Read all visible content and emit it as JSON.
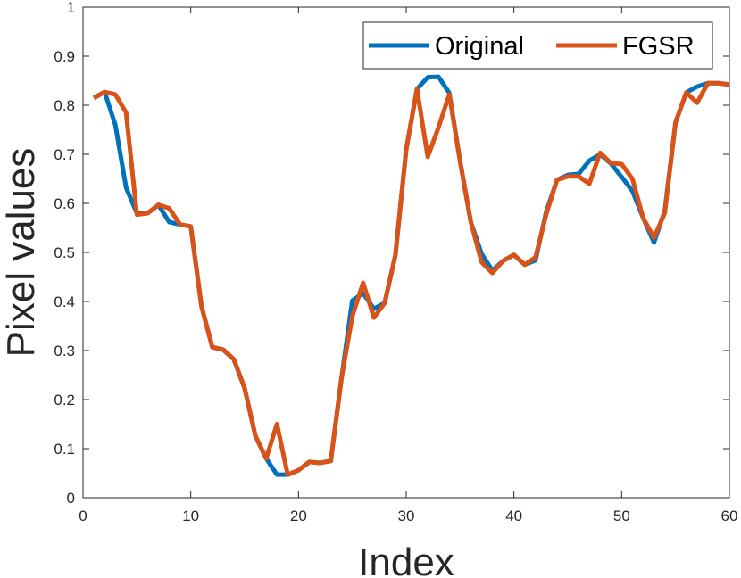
{
  "chart_data": {
    "type": "line",
    "xlabel": "Index",
    "ylabel": "Pixel values",
    "xlim": [
      0,
      60
    ],
    "ylim": [
      0,
      1
    ],
    "xticks": [
      "0",
      "10",
      "20",
      "30",
      "40",
      "50",
      "60"
    ],
    "yticks": [
      "0",
      "0.1",
      "0.2",
      "0.3",
      "0.4",
      "0.5",
      "0.6",
      "0.7",
      "0.8",
      "0.9",
      "1"
    ],
    "grid": false,
    "legend_position": "top-right",
    "x": [
      1,
      2,
      3,
      4,
      5,
      6,
      7,
      8,
      9,
      10,
      11,
      12,
      13,
      14,
      15,
      16,
      17,
      18,
      19,
      20,
      21,
      22,
      23,
      24,
      25,
      26,
      27,
      28,
      29,
      30,
      31,
      32,
      33,
      34,
      35,
      36,
      37,
      38,
      39,
      40,
      41,
      42,
      43,
      44,
      45,
      46,
      47,
      48,
      49,
      50,
      51,
      52,
      53,
      54,
      55,
      56,
      57,
      58,
      59,
      60
    ],
    "series": [
      {
        "name": "Original",
        "color": "#0072BD",
        "values": [
          0.815,
          0.827,
          0.76,
          0.632,
          0.58,
          0.58,
          0.597,
          0.562,
          0.557,
          0.553,
          0.39,
          0.307,
          0.302,
          0.282,
          0.223,
          0.126,
          0.08,
          0.047,
          0.047,
          0.056,
          0.073,
          0.071,
          0.075,
          0.245,
          0.402,
          0.417,
          0.385,
          0.397,
          0.495,
          0.71,
          0.833,
          0.857,
          0.858,
          0.825,
          0.686,
          0.562,
          0.497,
          0.463,
          0.483,
          0.495,
          0.475,
          0.484,
          0.583,
          0.648,
          0.658,
          0.66,
          0.687,
          0.7,
          0.681,
          0.654,
          0.625,
          0.57,
          0.52,
          0.585,
          0.765,
          0.826,
          0.838,
          0.845,
          0.845,
          0.842
        ]
      },
      {
        "name": "FGSR",
        "color": "#D95319",
        "values": [
          0.815,
          0.827,
          0.822,
          0.785,
          0.577,
          0.58,
          0.597,
          0.59,
          0.557,
          0.553,
          0.39,
          0.307,
          0.302,
          0.282,
          0.223,
          0.126,
          0.08,
          0.15,
          0.047,
          0.056,
          0.073,
          0.071,
          0.075,
          0.245,
          0.37,
          0.438,
          0.367,
          0.397,
          0.495,
          0.71,
          0.833,
          0.695,
          0.755,
          0.822,
          0.686,
          0.562,
          0.48,
          0.458,
          0.483,
          0.495,
          0.475,
          0.49,
          0.578,
          0.648,
          0.655,
          0.655,
          0.64,
          0.703,
          0.682,
          0.68,
          0.65,
          0.57,
          0.53,
          0.58,
          0.765,
          0.826,
          0.805,
          0.845,
          0.845,
          0.842
        ]
      }
    ]
  }
}
